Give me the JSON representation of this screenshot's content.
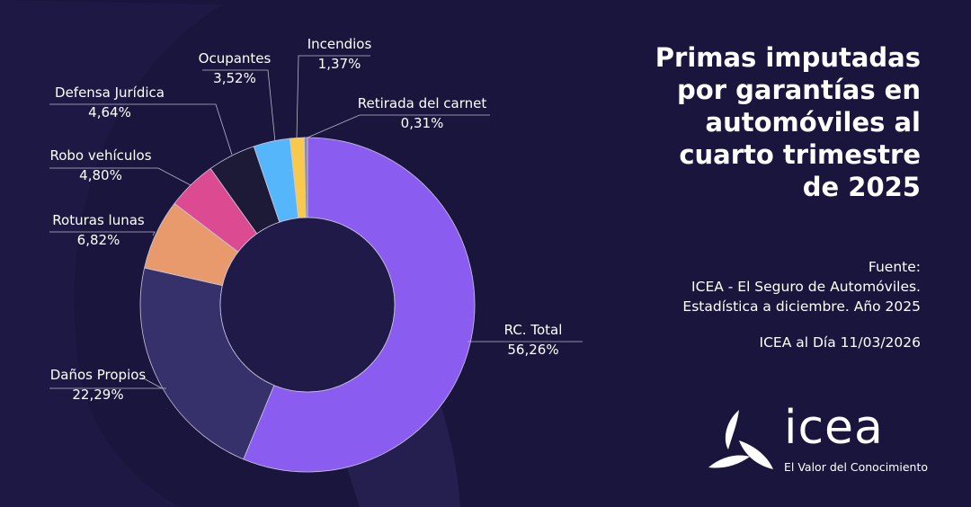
{
  "title_lines": [
    "Primas imputadas",
    "por garantías en",
    "automóviles al",
    "cuarto trimestre",
    "de 2025"
  ],
  "source": {
    "heading": "Fuente:",
    "line1": "ICEA - El Seguro de Automóviles.",
    "line2": "Estadística a diciembre. Año 2025"
  },
  "date_line": "ICEA al Día 11/03/2026",
  "logo": {
    "word": "icea",
    "tagline": "El Valor del Conocimiento"
  },
  "chart_data": {
    "type": "pie",
    "variant": "donut",
    "start": "top",
    "direction": "clockwise",
    "slices": [
      {
        "label": "RC. Total",
        "value": 56.26,
        "display": "56,26%",
        "color": "#8b5cf0"
      },
      {
        "label": "Daños Propios",
        "value": 22.29,
        "display": "22,29%",
        "color": "#36306b"
      },
      {
        "label": "Roturas lunas",
        "value": 6.82,
        "display": "6,82%",
        "color": "#e89a6c"
      },
      {
        "label": "Robo vehículos",
        "value": 4.8,
        "display": "4,80%",
        "color": "#dc4a92"
      },
      {
        "label": "Defensa Jurídica",
        "value": 4.64,
        "display": "4,64%",
        "color": "#1c1a36"
      },
      {
        "label": "Ocupantes",
        "value": 3.52,
        "display": "3,52%",
        "color": "#56b6fc"
      },
      {
        "label": "Incendios",
        "value": 1.37,
        "display": "1,37%",
        "color": "#f8c94a"
      },
      {
        "label": "Retirada del carnet",
        "value": 0.31,
        "display": "0,31%",
        "color": "#8a8a9a"
      }
    ]
  }
}
